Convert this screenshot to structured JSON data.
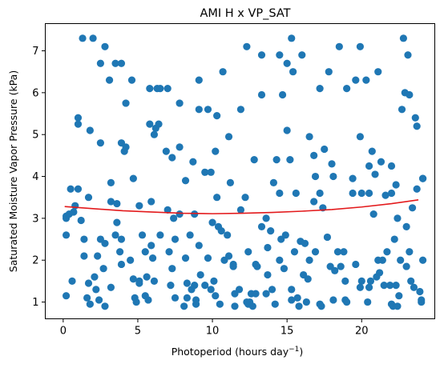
{
  "chart_data": {
    "type": "scatter",
    "title": "AMI H x VP_SAT",
    "xlabel": "Photoperiod (hours day",
    "xlabel_sup": "−1",
    "xlabel_close": ")",
    "ylabel": "Saturated Moisture Vapor Pressure (kPa)",
    "xlim": [
      -1.2,
      24.9
    ],
    "ylim": [
      0.6,
      7.65
    ],
    "xticks": [
      0,
      5,
      10,
      15,
      20
    ],
    "yticks": [
      1,
      2,
      3,
      4,
      5,
      6,
      7
    ],
    "grid": false,
    "legend": "none",
    "series": [
      {
        "kind": "points",
        "color": "#1f77b4",
        "points": [
          [
            0.2,
            3.05
          ],
          [
            0.2,
            2.6
          ],
          [
            0.2,
            1.15
          ],
          [
            0.2,
            3.0
          ],
          [
            0.4,
            3.1
          ],
          [
            0.5,
            3.7
          ],
          [
            0.6,
            1.5
          ],
          [
            0.7,
            3.15
          ],
          [
            0.8,
            3.3
          ],
          [
            1.0,
            3.7
          ],
          [
            1.0,
            5.4
          ],
          [
            1.0,
            5.25
          ],
          [
            1.2,
            2.95
          ],
          [
            1.3,
            7.3
          ],
          [
            1.4,
            2.5
          ],
          [
            1.4,
            2.1
          ],
          [
            1.6,
            1.1
          ],
          [
            1.7,
            1.45
          ],
          [
            1.7,
            3.5
          ],
          [
            1.8,
            0.95
          ],
          [
            1.8,
            5.1
          ],
          [
            2.0,
            7.3
          ],
          [
            2.1,
            1.6
          ],
          [
            2.2,
            1.3
          ],
          [
            2.3,
            2.1
          ],
          [
            2.4,
            1.05
          ],
          [
            2.5,
            2.5
          ],
          [
            2.5,
            6.7
          ],
          [
            2.5,
            4.8
          ],
          [
            2.7,
            1.8
          ],
          [
            2.8,
            0.9
          ],
          [
            2.8,
            7.1
          ],
          [
            2.8,
            2.4
          ],
          [
            3.1,
            6.3
          ],
          [
            3.2,
            3.85
          ],
          [
            3.2,
            3.4
          ],
          [
            3.2,
            1.35
          ],
          [
            3.5,
            6.7
          ],
          [
            3.5,
            2.6
          ],
          [
            3.6,
            2.9
          ],
          [
            3.6,
            3.35
          ],
          [
            3.8,
            2.2
          ],
          [
            3.9,
            6.7
          ],
          [
            3.9,
            4.8
          ],
          [
            3.9,
            2.5
          ],
          [
            3.9,
            1.9
          ],
          [
            4.1,
            4.6
          ],
          [
            4.2,
            5.75
          ],
          [
            4.2,
            4.7
          ],
          [
            4.5,
            2.0
          ],
          [
            4.6,
            6.3
          ],
          [
            4.7,
            1.55
          ],
          [
            4.7,
            3.95
          ],
          [
            4.8,
            1.1
          ],
          [
            4.9,
            1.0
          ],
          [
            5.1,
            1.5
          ],
          [
            5.1,
            1.45
          ],
          [
            5.1,
            3.3
          ],
          [
            5.3,
            2.6
          ],
          [
            5.5,
            1.15
          ],
          [
            5.5,
            2.2
          ],
          [
            5.6,
            1.6
          ],
          [
            5.7,
            1.05
          ],
          [
            5.8,
            5.25
          ],
          [
            5.8,
            6.1
          ],
          [
            5.9,
            2.35
          ],
          [
            5.9,
            3.4
          ],
          [
            6.0,
            2.05
          ],
          [
            6.1,
            1.5
          ],
          [
            6.1,
            5.0
          ],
          [
            6.2,
            5.15
          ],
          [
            6.3,
            6.1
          ],
          [
            6.4,
            5.25
          ],
          [
            6.5,
            2.6
          ],
          [
            6.5,
            6.1
          ],
          [
            6.9,
            4.6
          ],
          [
            7.0,
            6.1
          ],
          [
            7.0,
            3.2
          ],
          [
            7.1,
            2.2
          ],
          [
            7.2,
            1.4
          ],
          [
            7.3,
            4.45
          ],
          [
            7.3,
            1.8
          ],
          [
            7.4,
            3.0
          ],
          [
            7.5,
            1.1
          ],
          [
            7.5,
            2.5
          ],
          [
            7.8,
            5.75
          ],
          [
            7.8,
            3.1
          ],
          [
            7.8,
            4.7
          ],
          [
            8.1,
            0.9
          ],
          [
            8.2,
            2.05
          ],
          [
            8.2,
            3.9
          ],
          [
            8.3,
            1.45
          ],
          [
            8.3,
            1.1
          ],
          [
            8.5,
            2.6
          ],
          [
            8.6,
            1.3
          ],
          [
            8.7,
            4.35
          ],
          [
            8.8,
            1.4
          ],
          [
            8.8,
            3.1
          ],
          [
            8.9,
            0.95
          ],
          [
            8.9,
            1.05
          ],
          [
            9.1,
            5.6
          ],
          [
            9.1,
            6.3
          ],
          [
            9.1,
            2.35
          ],
          [
            9.2,
            1.65
          ],
          [
            9.5,
            4.1
          ],
          [
            9.5,
            1.4
          ],
          [
            9.7,
            5.6
          ],
          [
            9.7,
            2.05
          ],
          [
            9.9,
            4.1
          ],
          [
            9.9,
            1.3
          ],
          [
            10.0,
            2.9
          ],
          [
            10.1,
            1.5
          ],
          [
            10.2,
            4.6
          ],
          [
            10.2,
            1.15
          ],
          [
            10.3,
            5.45
          ],
          [
            10.3,
            3.5
          ],
          [
            10.4,
            2.8
          ],
          [
            10.5,
            0.95
          ],
          [
            10.6,
            2.7
          ],
          [
            10.7,
            6.5
          ],
          [
            10.8,
            2.0
          ],
          [
            11.0,
            2.6
          ],
          [
            11.1,
            4.95
          ],
          [
            11.1,
            2.1
          ],
          [
            11.2,
            3.85
          ],
          [
            11.4,
            1.9
          ],
          [
            11.4,
            1.85
          ],
          [
            11.5,
            0.9
          ],
          [
            11.5,
            1.2
          ],
          [
            11.8,
            1.3
          ],
          [
            11.9,
            3.2
          ],
          [
            11.9,
            5.6
          ],
          [
            12.2,
            3.5
          ],
          [
            12.3,
            7.1
          ],
          [
            12.3,
            1.0
          ],
          [
            12.4,
            0.95
          ],
          [
            12.4,
            2.2
          ],
          [
            12.5,
            1.0
          ],
          [
            12.6,
            1.2
          ],
          [
            12.7,
            0.9
          ],
          [
            12.8,
            4.4
          ],
          [
            12.9,
            1.9
          ],
          [
            12.9,
            1.2
          ],
          [
            13.0,
            1.85
          ],
          [
            13.3,
            5.95
          ],
          [
            13.3,
            2.8
          ],
          [
            13.3,
            6.9
          ],
          [
            13.6,
            3.0
          ],
          [
            13.6,
            1.2
          ],
          [
            13.7,
            2.3
          ],
          [
            13.7,
            1.65
          ],
          [
            13.9,
            2.7
          ],
          [
            14.0,
            1.3
          ],
          [
            14.1,
            3.85
          ],
          [
            14.2,
            0.95
          ],
          [
            14.3,
            4.4
          ],
          [
            14.5,
            2.0
          ],
          [
            14.5,
            3.6
          ],
          [
            14.5,
            6.9
          ],
          [
            14.6,
            2.5
          ],
          [
            14.7,
            5.95
          ],
          [
            14.8,
            1.8
          ],
          [
            14.9,
            2.6
          ],
          [
            15.0,
            5.1
          ],
          [
            15.0,
            6.7
          ],
          [
            15.2,
            4.4
          ],
          [
            15.3,
            1.3
          ],
          [
            15.3,
            7.3
          ],
          [
            15.3,
            1.05
          ],
          [
            15.4,
            6.5
          ],
          [
            15.5,
            2.2
          ],
          [
            15.6,
            3.6
          ],
          [
            15.7,
            1.1
          ],
          [
            15.8,
            0.9
          ],
          [
            15.9,
            2.45
          ],
          [
            16.0,
            6.9
          ],
          [
            16.1,
            1.65
          ],
          [
            16.2,
            2.4
          ],
          [
            16.3,
            1.0
          ],
          [
            16.4,
            1.55
          ],
          [
            16.5,
            4.95
          ],
          [
            16.5,
            2.0
          ],
          [
            16.8,
            4.5
          ],
          [
            16.8,
            3.4
          ],
          [
            16.9,
            2.2
          ],
          [
            16.9,
            4.0
          ],
          [
            17.2,
            6.1
          ],
          [
            17.2,
            3.6
          ],
          [
            17.2,
            0.95
          ],
          [
            17.3,
            0.9
          ],
          [
            17.4,
            3.25
          ],
          [
            17.5,
            4.65
          ],
          [
            17.7,
            2.55
          ],
          [
            17.8,
            6.5
          ],
          [
            17.9,
            1.85
          ],
          [
            18.0,
            4.3
          ],
          [
            18.1,
            4.0
          ],
          [
            18.1,
            1.05
          ],
          [
            18.2,
            1.75
          ],
          [
            18.4,
            2.2
          ],
          [
            18.5,
            7.1
          ],
          [
            18.6,
            1.85
          ],
          [
            18.8,
            2.2
          ],
          [
            18.9,
            1.05
          ],
          [
            18.9,
            1.5
          ],
          [
            19.0,
            6.1
          ],
          [
            19.0,
            1.0
          ],
          [
            19.4,
            3.6
          ],
          [
            19.4,
            3.95
          ],
          [
            19.6,
            1.9
          ],
          [
            19.6,
            6.3
          ],
          [
            19.9,
            4.95
          ],
          [
            19.9,
            1.35
          ],
          [
            19.9,
            7.1
          ],
          [
            20.0,
            1.5
          ],
          [
            20.0,
            3.6
          ],
          [
            20.3,
            6.3
          ],
          [
            20.4,
            1.0
          ],
          [
            20.5,
            3.6
          ],
          [
            20.5,
            1.35
          ],
          [
            20.5,
            4.25
          ],
          [
            20.6,
            1.5
          ],
          [
            20.7,
            4.6
          ],
          [
            20.8,
            3.1
          ],
          [
            20.9,
            4.05
          ],
          [
            21.0,
            1.6
          ],
          [
            21.1,
            2.0
          ],
          [
            21.1,
            6.5
          ],
          [
            21.2,
            1.7
          ],
          [
            21.3,
            4.35
          ],
          [
            21.4,
            2.0
          ],
          [
            21.5,
            1.4
          ],
          [
            21.6,
            3.55
          ],
          [
            21.7,
            2.2
          ],
          [
            21.9,
            1.4
          ],
          [
            22.0,
            0.95
          ],
          [
            22.0,
            3.6
          ],
          [
            22.0,
            4.25
          ],
          [
            22.1,
            0.9
          ],
          [
            22.2,
            2.5
          ],
          [
            22.3,
            3.8
          ],
          [
            22.3,
            1.4
          ],
          [
            22.4,
            3.0
          ],
          [
            22.4,
            0.9
          ],
          [
            22.5,
            1.15
          ],
          [
            22.6,
            2.0
          ],
          [
            22.7,
            5.6
          ],
          [
            22.8,
            7.3
          ],
          [
            22.9,
            6.0
          ],
          [
            23.0,
            2.8
          ],
          [
            23.0,
            1.85
          ],
          [
            23.1,
            6.9
          ],
          [
            23.2,
            5.95
          ],
          [
            23.2,
            2.2
          ],
          [
            23.3,
            1.5
          ],
          [
            23.4,
            3.25
          ],
          [
            23.5,
            1.35
          ],
          [
            23.6,
            5.4
          ],
          [
            23.7,
            5.2
          ],
          [
            23.7,
            3.7
          ],
          [
            23.9,
            1.25
          ],
          [
            24.0,
            1.0
          ],
          [
            24.0,
            1.05
          ],
          [
            24.1,
            3.95
          ],
          [
            24.1,
            2.0
          ],
          [
            24.1,
            3.95
          ]
        ]
      },
      {
        "kind": "trend",
        "color": "#e31a1c",
        "x": [
          0.1,
          2.0,
          4.0,
          6.0,
          8.0,
          10.0,
          12.0,
          14.0,
          16.0,
          18.0,
          20.0,
          22.0,
          23.8
        ],
        "y": [
          3.28,
          3.23,
          3.18,
          3.15,
          3.12,
          3.11,
          3.12,
          3.14,
          3.17,
          3.21,
          3.27,
          3.35,
          3.44
        ]
      }
    ]
  }
}
